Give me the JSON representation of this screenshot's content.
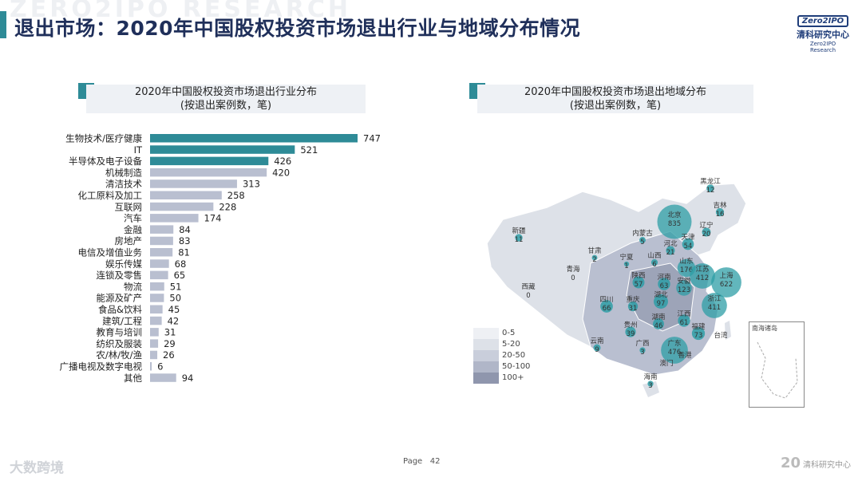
{
  "header": {
    "title": "退出市场：2020年中国股权投资市场退出行业与地域分布情况",
    "watermark": "ZERO2IPO RESEARCH"
  },
  "logo": {
    "box_text": "Zero2IPO",
    "cn": "清科研究中心",
    "en": "Zero2IPO Research"
  },
  "left_panel": {
    "title_line1": "2020年中国股权投资市场退出行业分布",
    "title_line2": "(按退出案例数，笔)"
  },
  "right_panel": {
    "title_line1": "2020年中国股权投资市场退出地域分布",
    "title_line2": "(按退出案例数，笔)"
  },
  "colors": {
    "accent": "#2e8b97",
    "bar_top": "#2e8b97",
    "bar_other": "#b9bfd0",
    "title": "#1f2f5a"
  },
  "chart_data": [
    {
      "type": "bar",
      "orientation": "horizontal",
      "categories": [
        "生物技术/医疗健康",
        "IT",
        "半导体及电子设备",
        "机械制造",
        "清洁技术",
        "化工原料及加工",
        "互联网",
        "汽车",
        "金融",
        "房地产",
        "电信及增值业务",
        "娱乐传媒",
        "连锁及零售",
        "物流",
        "能源及矿产",
        "食品&饮料",
        "建筑/工程",
        "教育与培训",
        "纺织及服装",
        "农/林/牧/渔",
        "广播电视及数字电视",
        "其他"
      ],
      "values": [
        747,
        521,
        426,
        420,
        313,
        258,
        228,
        174,
        84,
        83,
        81,
        68,
        65,
        51,
        50,
        45,
        42,
        31,
        29,
        26,
        6,
        94
      ],
      "highlight_count": 3
    },
    {
      "type": "map",
      "legend": [
        "0-5",
        "5-20",
        "20-50",
        "50-100",
        "100+"
      ],
      "regions": [
        {
          "name": "黑龙江",
          "value": 12
        },
        {
          "name": "吉林",
          "value": 16
        },
        {
          "name": "辽宁",
          "value": 20
        },
        {
          "name": "北京",
          "value": 835
        },
        {
          "name": "天津",
          "value": 54
        },
        {
          "name": "河北",
          "value": 21
        },
        {
          "name": "内蒙古",
          "value": 5
        },
        {
          "name": "新疆",
          "value": 11
        },
        {
          "name": "甘肃",
          "value": 2
        },
        {
          "name": "宁夏",
          "value": 1
        },
        {
          "name": "青海",
          "value": 0
        },
        {
          "name": "西藏",
          "value": 0
        },
        {
          "name": "山西",
          "value": 6
        },
        {
          "name": "山东",
          "value": 176
        },
        {
          "name": "陕西",
          "value": 57
        },
        {
          "name": "河南",
          "value": 63
        },
        {
          "name": "江苏",
          "value": 412
        },
        {
          "name": "上海",
          "value": 622
        },
        {
          "name": "安徽",
          "value": 123
        },
        {
          "name": "四川",
          "value": 66
        },
        {
          "name": "重庆",
          "value": 31
        },
        {
          "name": "湖北",
          "value": 97
        },
        {
          "name": "浙江",
          "value": 411
        },
        {
          "name": "湖南",
          "value": 46
        },
        {
          "name": "江西",
          "value": 61
        },
        {
          "name": "福建",
          "value": 73
        },
        {
          "name": "贵州",
          "value": 39
        },
        {
          "name": "云南",
          "value": 9
        },
        {
          "name": "广西",
          "value": 3
        },
        {
          "name": "广东",
          "value": 476
        },
        {
          "name": "海南",
          "value": 3
        },
        {
          "name": "台湾",
          "value": null
        },
        {
          "name": "香港",
          "value": null
        },
        {
          "name": "澳门",
          "value": null
        }
      ],
      "inset_label": "南海诸岛"
    }
  ],
  "footer": {
    "page_label": "Page",
    "page_number": "42",
    "brand": "大数跨境",
    "logo_text": "清科研究中心"
  }
}
